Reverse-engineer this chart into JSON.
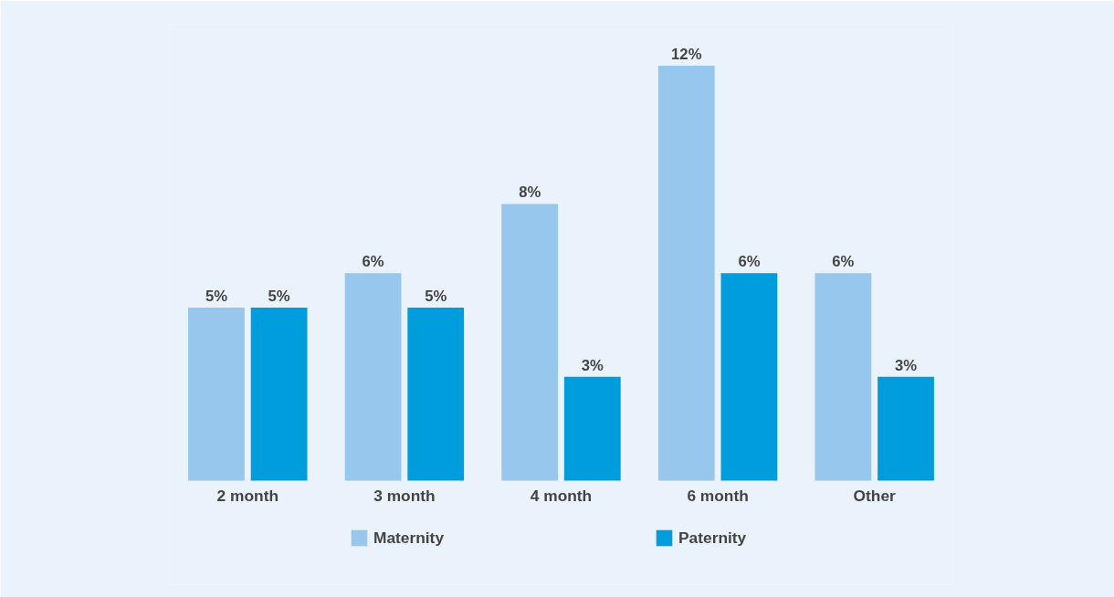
{
  "chart_data": {
    "type": "bar",
    "categories": [
      "2 month",
      "3 month",
      "4 month",
      "6 month",
      "Other"
    ],
    "series": [
      {
        "name": "Maternity",
        "color": "#97c7ec",
        "values": [
          5,
          6,
          8,
          12,
          6
        ],
        "value_labels": [
          "5%",
          "6%",
          "8%",
          "12%",
          "6%"
        ]
      },
      {
        "name": "Paternity",
        "color": "#009ddc",
        "values": [
          5,
          5,
          3,
          6,
          3
        ],
        "value_labels": [
          "5%",
          "5%",
          "3%",
          "6%",
          "3%"
        ]
      }
    ],
    "legend": "bottom",
    "grid": false
  }
}
